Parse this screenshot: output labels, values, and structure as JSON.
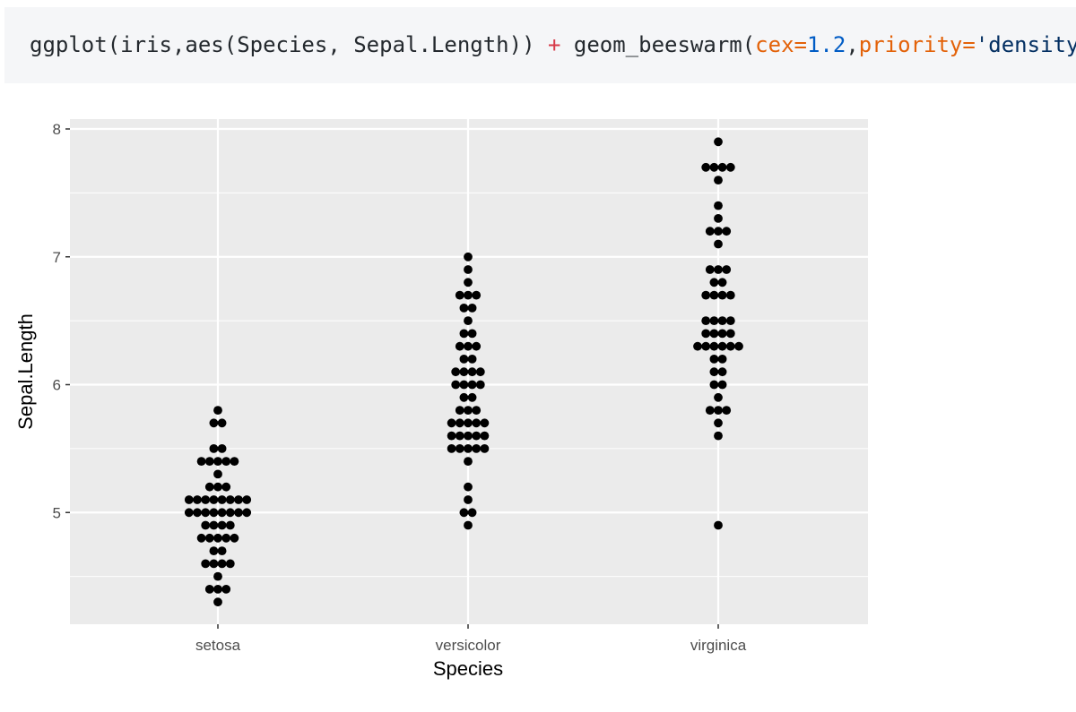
{
  "code": {
    "t1": "ggplot(iris,aes(Species, Sepal.Length)) ",
    "t2": "+",
    "t3": " geom_beeswarm(",
    "t4": "cex=",
    "t5": "1.2",
    "t6": ",",
    "t7": "priority=",
    "t8": "'density'",
    "t9": ")"
  },
  "chart_data": {
    "type": "scatter",
    "subtype": "beeswarm",
    "title": "",
    "xlabel": "Species",
    "ylabel": "Sepal.Length",
    "categories": [
      "setosa",
      "versicolor",
      "virginica"
    ],
    "ylim": [
      4.15,
      8.1
    ],
    "yticks": [
      5,
      6,
      7,
      8
    ],
    "grid": true,
    "panel_background": "#ebebeb",
    "point_color": "#000000",
    "data": {
      "setosa": [
        4.3,
        4.4,
        4.4,
        4.4,
        4.5,
        4.6,
        4.6,
        4.6,
        4.6,
        4.7,
        4.7,
        4.8,
        4.8,
        4.8,
        4.8,
        4.8,
        4.9,
        4.9,
        4.9,
        4.9,
        5.0,
        5.0,
        5.0,
        5.0,
        5.0,
        5.0,
        5.0,
        5.0,
        5.1,
        5.1,
        5.1,
        5.1,
        5.1,
        5.1,
        5.1,
        5.1,
        5.2,
        5.2,
        5.2,
        5.3,
        5.4,
        5.4,
        5.4,
        5.4,
        5.4,
        5.5,
        5.5,
        5.7,
        5.7,
        5.8
      ],
      "versicolor": [
        4.9,
        5.0,
        5.0,
        5.1,
        5.2,
        5.4,
        5.5,
        5.5,
        5.5,
        5.5,
        5.5,
        5.6,
        5.6,
        5.6,
        5.6,
        5.6,
        5.7,
        5.7,
        5.7,
        5.7,
        5.7,
        5.8,
        5.8,
        5.8,
        5.9,
        5.9,
        6.0,
        6.0,
        6.0,
        6.0,
        6.1,
        6.1,
        6.1,
        6.1,
        6.2,
        6.2,
        6.3,
        6.3,
        6.3,
        6.4,
        6.4,
        6.5,
        6.6,
        6.6,
        6.7,
        6.7,
        6.7,
        6.8,
        6.9,
        7.0
      ],
      "virginica": [
        4.9,
        5.6,
        5.7,
        5.8,
        5.8,
        5.8,
        5.9,
        6.0,
        6.0,
        6.1,
        6.1,
        6.2,
        6.2,
        6.3,
        6.3,
        6.3,
        6.3,
        6.3,
        6.3,
        6.4,
        6.4,
        6.4,
        6.4,
        6.5,
        6.5,
        6.5,
        6.5,
        6.7,
        6.7,
        6.7,
        6.7,
        6.8,
        6.8,
        6.9,
        6.9,
        6.9,
        7.1,
        7.2,
        7.2,
        7.2,
        7.3,
        7.4,
        7.6,
        7.7,
        7.7,
        7.7,
        7.7,
        7.9
      ]
    }
  }
}
